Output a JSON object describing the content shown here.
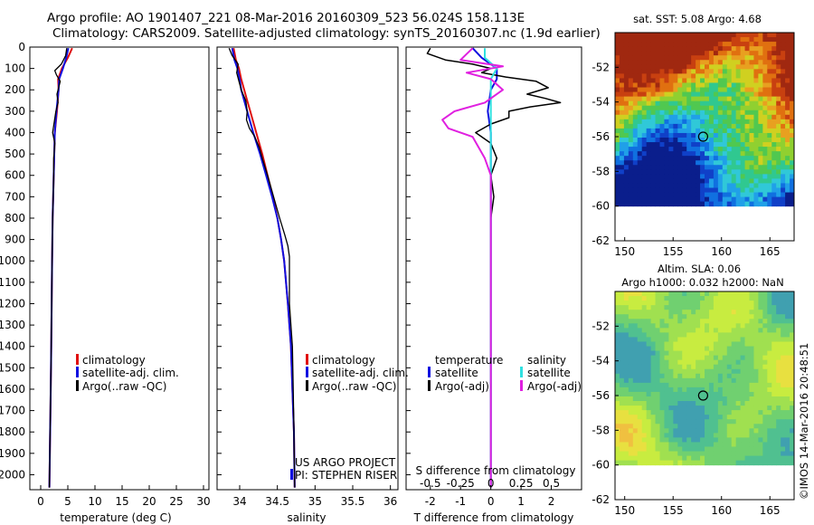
{
  "header": {
    "line1": "Argo profile: AO 1901407_221 08-Mar-2016 20160309_523 56.024S 158.113E",
    "line2": "Climatology: CARS2009. Satellite-adjusted climatology: synTS_20160307.nc (1.9d earlier)"
  },
  "colors": {
    "climatology": "#e01010",
    "satellite": "#1010e0",
    "argo": "#000000",
    "argo_salt_diff": "#e020e0",
    "satellite_salt_diff": "#30e0e0"
  },
  "chart_data": [
    {
      "type": "line",
      "id": "temperature",
      "xlabel": "temperature (deg C)",
      "xlim": [
        -2,
        31
      ],
      "ylim": [
        2070,
        0
      ],
      "xticks": [
        "0",
        "5",
        "10",
        "15",
        "20",
        "25",
        "30"
      ],
      "xtick_values": [
        0,
        5,
        10,
        15,
        20,
        25,
        30
      ],
      "yticks": [
        "0",
        "100",
        "200",
        "300",
        "400",
        "500",
        "600",
        "700",
        "800",
        "900",
        "1000",
        "1100",
        "1200",
        "1300",
        "1400",
        "1500",
        "1600",
        "1700",
        "1800",
        "1900",
        "2000"
      ],
      "legend": [
        "climatology",
        "satellite-adj. clim.",
        "Argo(..raw -QC)"
      ],
      "series": [
        {
          "name": "climatology",
          "depth": [
            5,
            50,
            100,
            150,
            200,
            300,
            400,
            600,
            800,
            1000,
            1500,
            2060
          ],
          "values": [
            5.8,
            5.0,
            3.9,
            3.2,
            3.3,
            3.0,
            2.6,
            2.4,
            2.2,
            2.1,
            1.9,
            1.6
          ]
        },
        {
          "name": "satellite-adj. clim.",
          "depth": [
            5,
            50,
            100,
            150,
            200,
            300,
            400,
            600,
            800,
            1000,
            1500,
            2060
          ],
          "values": [
            5.1,
            4.7,
            4.1,
            3.4,
            3.3,
            2.9,
            2.6,
            2.4,
            2.2,
            2.1,
            1.9,
            1.6
          ]
        },
        {
          "name": "Argo(..raw -QC)",
          "depth": [
            5,
            40,
            80,
            110,
            130,
            160,
            190,
            220,
            260,
            300,
            350,
            400,
            450,
            520,
            600,
            700,
            800,
            1000,
            1500,
            2060
          ],
          "values": [
            4.8,
            4.6,
            3.8,
            2.6,
            2.9,
            3.6,
            3.3,
            3.0,
            3.2,
            2.8,
            2.5,
            2.2,
            2.6,
            2.4,
            2.4,
            2.3,
            2.2,
            2.1,
            1.9,
            1.6
          ]
        }
      ]
    },
    {
      "type": "line",
      "id": "salinity",
      "xlabel": "salinity",
      "xlim": [
        33.7,
        36.1
      ],
      "ylim": [
        2070,
        0
      ],
      "xticks": [
        "34",
        "34.5",
        "35",
        "35.5",
        "36"
      ],
      "xtick_values": [
        34,
        34.5,
        35,
        35.5,
        36
      ],
      "legend": [
        "climatology",
        "satellite-adj. clim.",
        "Argo(..raw -QC)"
      ],
      "annotation": [
        "US ARGO PROJECT",
        "PI: STEPHEN RISER"
      ],
      "series": [
        {
          "name": "climatology",
          "depth": [
            5,
            60,
            100,
            150,
            200,
            250,
            300,
            400,
            500,
            600,
            700,
            800,
            900,
            1000,
            1200,
            1400,
            1600,
            1800,
            2060
          ],
          "values": [
            33.92,
            33.95,
            33.99,
            34.02,
            34.06,
            34.1,
            34.14,
            34.22,
            34.3,
            34.37,
            34.44,
            34.5,
            34.55,
            34.59,
            34.64,
            34.68,
            34.7,
            34.72,
            34.73
          ]
        },
        {
          "name": "satellite-adj. clim.",
          "depth": [
            5,
            60,
            100,
            150,
            200,
            250,
            300,
            400,
            500,
            600,
            700,
            800,
            900,
            1000,
            1200,
            1400,
            1600,
            1800,
            2060
          ],
          "values": [
            33.9,
            33.93,
            33.97,
            34.0,
            34.02,
            34.06,
            34.1,
            34.18,
            34.27,
            34.35,
            34.43,
            34.5,
            34.55,
            34.59,
            34.64,
            34.68,
            34.7,
            34.72,
            34.73
          ]
        },
        {
          "name": "Argo(..raw -QC)",
          "depth": [
            5,
            40,
            80,
            120,
            160,
            200,
            250,
            300,
            340,
            380,
            420,
            470,
            520,
            600,
            700,
            800,
            880,
            930,
            980,
            1050,
            1200,
            1400,
            1600,
            1800,
            2060
          ],
          "values": [
            33.86,
            33.9,
            33.98,
            33.96,
            33.99,
            34.02,
            34.08,
            34.1,
            34.09,
            34.13,
            34.2,
            34.26,
            34.3,
            34.37,
            34.45,
            34.53,
            34.6,
            34.64,
            34.66,
            34.66,
            34.66,
            34.7,
            34.71,
            34.72,
            34.73
          ]
        }
      ]
    },
    {
      "type": "line",
      "id": "difference",
      "xlabel": "T difference from climatology",
      "xlabel_top": "S difference from climatology",
      "xlim": [
        -2.8,
        3.0
      ],
      "ylim": [
        2070,
        0
      ],
      "xticks": [
        "-2",
        "-1",
        "0",
        "1",
        "2"
      ],
      "xtick_values": [
        -2,
        -1,
        0,
        1,
        2
      ],
      "xticks_top": [
        "-0.5",
        "-0.25",
        "0",
        "0.25",
        "0.5"
      ],
      "legend_headers": [
        "temperature",
        "salinity"
      ],
      "legend": [
        "satellite",
        "Argo(-adj)",
        "satellite",
        "Argo(-adj)"
      ],
      "series": [
        {
          "name": "temperature satellite",
          "depth": [
            5,
            50,
            100,
            150,
            200,
            300,
            400,
            600,
            800,
            1000,
            1500,
            2060
          ],
          "values": [
            -0.6,
            -0.3,
            0.2,
            0.2,
            0.0,
            -0.1,
            0.0,
            0.0,
            0.0,
            0.0,
            0.0,
            0.0
          ]
        },
        {
          "name": "temperature Argo(-adj)",
          "depth": [
            5,
            30,
            60,
            80,
            100,
            120,
            140,
            160,
            190,
            220,
            240,
            260,
            280,
            300,
            330,
            360,
            400,
            450,
            520,
            600,
            700,
            800,
            1000,
            1500,
            2060
          ],
          "values": [
            -2.0,
            -2.1,
            -1.5,
            -0.6,
            0.0,
            -0.3,
            0.5,
            1.5,
            1.9,
            1.2,
            1.8,
            2.3,
            1.3,
            0.6,
            0.6,
            0.0,
            -0.5,
            0.0,
            0.2,
            0.0,
            0.1,
            0.0,
            0.0,
            0.0,
            0.0
          ]
        },
        {
          "name": "salinity satellite",
          "depth": [
            5,
            50,
            100,
            150,
            200,
            300,
            400,
            600,
            800,
            1000,
            1500,
            2060
          ],
          "values": [
            -0.05,
            -0.05,
            0.05,
            0.0,
            0.0,
            0.0,
            0.0,
            0.0,
            0.0,
            0.0,
            0.0,
            0.0
          ]
        },
        {
          "name": "salinity Argo(-adj)",
          "depth": [
            5,
            60,
            90,
            120,
            150,
            200,
            260,
            300,
            340,
            380,
            420,
            470,
            520,
            600,
            800,
            1000,
            1500,
            2060
          ],
          "values": [
            -0.15,
            -0.25,
            0.1,
            -0.2,
            0.0,
            0.1,
            -0.05,
            -0.3,
            -0.4,
            -0.35,
            -0.15,
            -0.1,
            -0.05,
            0.0,
            0.0,
            0.0,
            0.0,
            0.0
          ]
        }
      ]
    },
    {
      "type": "heatmap",
      "id": "sst_map",
      "title": "sat. SST: 5.08 Argo: 4.68",
      "xlim": [
        149,
        167.5
      ],
      "ylim": [
        -62,
        -50
      ],
      "xticks": [
        "150",
        "155",
        "160",
        "165"
      ],
      "xtick_values": [
        150,
        155,
        160,
        165
      ],
      "yticks": [
        "-52",
        "-54",
        "-56",
        "-58",
        "-60",
        "-62"
      ],
      "ytick_values": [
        -52,
        -54,
        -56,
        -58,
        -60,
        -62
      ],
      "marker": {
        "lon": 158.1,
        "lat": -56.0
      }
    },
    {
      "type": "heatmap",
      "id": "sla_map",
      "title": "Altim. SLA: 0.06",
      "subtitle": "Argo h1000: 0.032 h2000: NaN",
      "xlim": [
        149,
        167.5
      ],
      "ylim": [
        -62,
        -50
      ],
      "xticks": [
        "150",
        "155",
        "160",
        "165"
      ],
      "xtick_values": [
        150,
        155,
        160,
        165
      ],
      "yticks": [
        "-52",
        "-54",
        "-56",
        "-58",
        "-60",
        "-62"
      ],
      "ytick_values": [
        -52,
        -54,
        -56,
        -58,
        -60,
        -62
      ],
      "marker": {
        "lon": 158.1,
        "lat": -56.0
      }
    }
  ],
  "side_label": "©IMOS 14-Mar-2016 20:48:51"
}
